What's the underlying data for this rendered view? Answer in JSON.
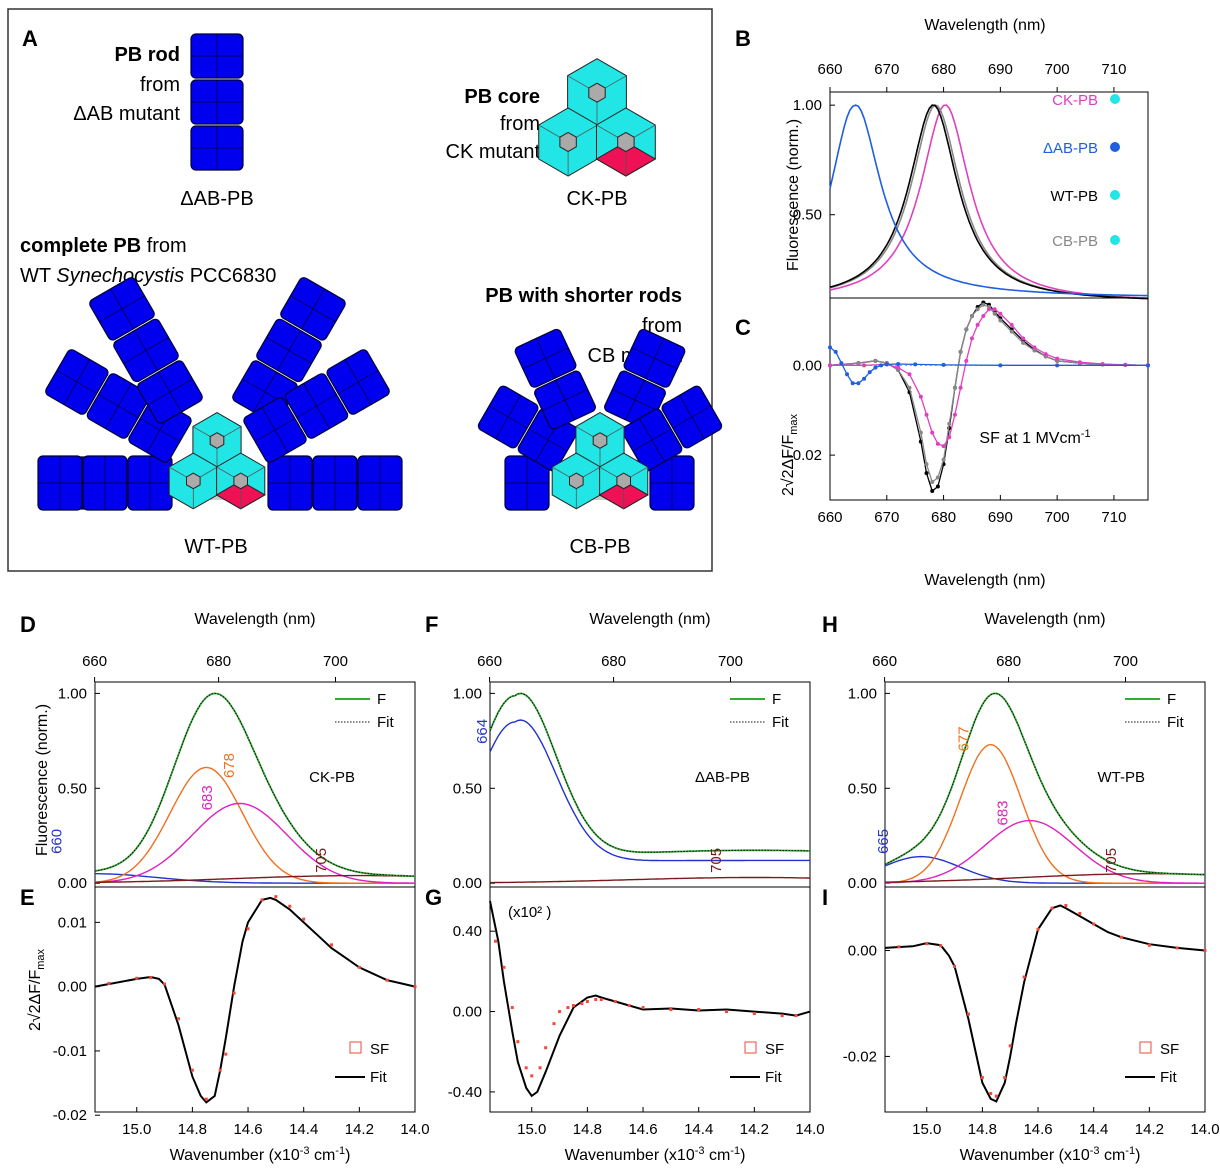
{
  "panel_labels": {
    "A": "A",
    "B": "B",
    "C": "C",
    "D": "D",
    "E": "E",
    "F": "F",
    "G": "G",
    "H": "H",
    "I": "I"
  },
  "schematic": {
    "rod_title_bold": "PB rod",
    "rod_from": "from",
    "rod_mutant": "ΔAB mutant",
    "rod_name": "ΔAB-PB",
    "core_title_bold": "PB core",
    "core_from": "from",
    "core_mutant": "CK mutant",
    "core_name": "CK-PB",
    "wt_title_bold": "complete PB",
    "wt_title_rest": " from",
    "wt_line2_a": "WT ",
    "wt_line2_italic": "Synechocystis",
    "wt_line2_b": " PCC6830",
    "wt_name": "WT-PB",
    "cb_title_bold": "PB with shorter rods",
    "cb_from": "from",
    "cb_mutant": "CB mutant",
    "cb_name": "CB-PB",
    "colors": {
      "rod": "#0000ee",
      "core": "#22e5e5",
      "core_red": "#ee1155",
      "gray": "#cccccc"
    }
  },
  "chart_data": [
    {
      "panel": "B",
      "type": "line",
      "top_xlabel": "Wavelength (nm)",
      "ylabel": "Fluorescence (norm.)",
      "xlim": [
        660,
        716
      ],
      "ylim": [
        0.12,
        1.06
      ],
      "xticks": [
        660,
        670,
        680,
        690,
        700,
        710
      ],
      "yticks": [
        "0.50",
        "1.00"
      ],
      "series": [
        {
          "name": "CK-PB",
          "color": "#e040c0",
          "peak": 680.3,
          "fwhm": 10.5,
          "base": 0.12
        },
        {
          "name": "ΔAB-PB",
          "color": "#1f5fdf",
          "peak": 664.3,
          "fwhm": 11,
          "base": 0.12
        },
        {
          "name": "WT-PB",
          "color": "#000000",
          "peak": 678.2,
          "fwhm": 10.5,
          "base": 0.12
        },
        {
          "name": "CB-PB",
          "color": "#888888",
          "peak": 678.6,
          "fwhm": 10.5,
          "base": 0.12
        }
      ]
    },
    {
      "panel": "C",
      "type": "line",
      "xlabel": "Wavelength (nm)",
      "ylabel": "2√2ΔF/Fmax",
      "annotation": "SF at 1 MVcm-1",
      "xlim": [
        660,
        716
      ],
      "ylim": [
        -0.03,
        0.015
      ],
      "xticks": [
        660,
        670,
        680,
        690,
        700,
        710
      ],
      "yticks": [
        "0.00",
        "-0.02"
      ],
      "series": [
        {
          "name": "WT-PB",
          "color": "#000000",
          "x": [
            660,
            665,
            668,
            670,
            672,
            674,
            676,
            677,
            678,
            679,
            680,
            681,
            682,
            683,
            684,
            685,
            686,
            687,
            688,
            689,
            690,
            692,
            694,
            696,
            698,
            700,
            704,
            708,
            712,
            716
          ],
          "y": [
            0.0,
            0.0005,
            0.001,
            0.0005,
            -0.001,
            -0.006,
            -0.017,
            -0.024,
            -0.028,
            -0.027,
            -0.022,
            -0.014,
            -0.005,
            0.003,
            0.008,
            0.011,
            0.013,
            0.014,
            0.0135,
            0.012,
            0.0105,
            0.008,
            0.0055,
            0.0035,
            0.002,
            0.001,
            0.0005,
            0.0002,
            0.0001,
            0.0
          ]
        },
        {
          "name": "CB-PB",
          "color": "#888888",
          "x": [
            660,
            665,
            668,
            670,
            672,
            674,
            676,
            677,
            678,
            679,
            680,
            681,
            682,
            683,
            684,
            685,
            686,
            687,
            688,
            689,
            690,
            692,
            694,
            696,
            698,
            700,
            704,
            708,
            712,
            716
          ],
          "y": [
            0.0,
            0.0005,
            0.001,
            0.0005,
            -0.001,
            -0.005,
            -0.015,
            -0.022,
            -0.026,
            -0.025,
            -0.021,
            -0.013,
            -0.005,
            0.003,
            0.008,
            0.011,
            0.0125,
            0.0135,
            0.013,
            0.0115,
            0.01,
            0.0075,
            0.005,
            0.0033,
            0.002,
            0.001,
            0.0005,
            0.0002,
            0.0001,
            0.0
          ]
        },
        {
          "name": "CK-PB",
          "color": "#e040c0",
          "x": [
            660,
            666,
            670,
            672,
            674,
            676,
            677,
            678,
            679,
            680,
            681,
            682,
            683,
            684,
            685,
            686,
            687,
            688,
            689,
            690,
            692,
            694,
            696,
            698,
            700,
            704,
            708,
            712,
            716
          ],
          "y": [
            0.0,
            0.0,
            0.0002,
            -0.0005,
            -0.002,
            -0.007,
            -0.011,
            -0.015,
            -0.0175,
            -0.018,
            -0.016,
            -0.011,
            -0.005,
            0.001,
            0.006,
            0.009,
            0.011,
            0.0125,
            0.0125,
            0.0115,
            0.009,
            0.006,
            0.004,
            0.0025,
            0.0015,
            0.0007,
            0.0003,
            0.0001,
            0.0
          ]
        },
        {
          "name": "ΔAB-PB",
          "color": "#1f5fdf",
          "x": [
            660,
            661,
            662,
            663,
            664,
            665,
            666,
            667,
            668,
            669,
            670,
            672,
            675,
            680,
            690,
            700,
            716
          ],
          "y": [
            0.004,
            0.003,
            0.0005,
            -0.002,
            -0.004,
            -0.004,
            -0.003,
            -0.0015,
            -0.0005,
            0.0,
            0.0002,
            0.0003,
            0.0002,
            0.0001,
            0.0,
            0.0,
            0.0
          ]
        }
      ]
    },
    {
      "panel": "D",
      "type": "line",
      "top_xlabel": "Wavelength (nm)",
      "ylabel": "Fluorescence (norm.)",
      "sample_label": "CK-PB",
      "xlim": [
        15.15,
        14.0
      ],
      "ylim": [
        -0.02,
        1.06
      ],
      "top_ticks": [
        660,
        680,
        700
      ],
      "yticks": [
        "0.00",
        "0.50",
        "1.00"
      ],
      "legend": [
        "F",
        "Fit"
      ],
      "peak_labels": [
        {
          "text": "660",
          "color": "#2233cc"
        },
        {
          "text": "678",
          "color": "#f07020"
        },
        {
          "text": "683",
          "color": "#e020c0"
        },
        {
          "text": "705",
          "color": "#7a1a1a"
        }
      ],
      "components": [
        {
          "name": "660",
          "color": "#2233cc",
          "center": 15.15,
          "width": 0.22,
          "amp": 0.05
        },
        {
          "name": "678",
          "color": "#f07020",
          "center": 14.75,
          "width": 0.13,
          "amp": 0.61
        },
        {
          "name": "683",
          "color": "#e020c0",
          "center": 14.63,
          "width": 0.17,
          "amp": 0.42
        },
        {
          "name": "705",
          "color": "#7a1a1a",
          "center": 14.2,
          "width": 0.45,
          "amp": 0.04
        }
      ],
      "total": {
        "name": "F",
        "color": "#33aa33"
      }
    },
    {
      "panel": "E",
      "type": "line",
      "xlabel": "Wavenumber (x10-3 cm-1)",
      "ylabel": "2√2ΔF/Fmax",
      "xlim": [
        15.15,
        14.0
      ],
      "ylim": [
        -0.0195,
        0.0155
      ],
      "xticks": [
        "15.0",
        "14.8",
        "14.6",
        "14.4",
        "14.2",
        "14.0"
      ],
      "yticks": [
        "-0.02",
        "-0.01",
        "0.00",
        "0.01"
      ],
      "legend": [
        "SF",
        "Fit"
      ],
      "fit_x": [
        15.15,
        15.0,
        14.95,
        14.92,
        14.9,
        14.85,
        14.8,
        14.77,
        14.75,
        14.72,
        14.7,
        14.68,
        14.65,
        14.62,
        14.6,
        14.55,
        14.52,
        14.5,
        14.45,
        14.4,
        14.35,
        14.3,
        14.25,
        14.2,
        14.15,
        14.1,
        14.05,
        14.0
      ],
      "fit_y": [
        0.0,
        0.0012,
        0.0015,
        0.0012,
        0.0003,
        -0.006,
        -0.014,
        -0.017,
        -0.018,
        -0.017,
        -0.013,
        -0.008,
        0.0,
        0.007,
        0.01,
        0.0135,
        0.0138,
        0.0135,
        0.012,
        0.01,
        0.008,
        0.006,
        0.0045,
        0.003,
        0.002,
        0.001,
        0.0005,
        0.0
      ],
      "sf_x": [
        15.1,
        15.0,
        14.95,
        14.9,
        14.85,
        14.8,
        14.75,
        14.7,
        14.68,
        14.65,
        14.6,
        14.55,
        14.5,
        14.45,
        14.4,
        14.3,
        14.2,
        14.1,
        14.0
      ],
      "sf_y": [
        0.0005,
        0.0013,
        0.0014,
        0.0004,
        -0.005,
        -0.013,
        -0.0175,
        -0.013,
        -0.0105,
        -0.001,
        0.009,
        0.0135,
        0.014,
        0.0125,
        0.0105,
        0.0065,
        0.003,
        0.001,
        0.0
      ]
    },
    {
      "panel": "F",
      "type": "line",
      "top_xlabel": "Wavelength (nm)",
      "sample_label": "ΔAB-PB",
      "xlim": [
        15.15,
        14.0
      ],
      "ylim": [
        -0.02,
        1.06
      ],
      "top_ticks": [
        660,
        680,
        700
      ],
      "yticks": [
        "0.00",
        "0.50",
        "1.00"
      ],
      "legend": [
        "F",
        "Fit"
      ],
      "peak_labels": [
        {
          "text": "664",
          "color": "#2233cc"
        },
        {
          "text": "705",
          "color": "#7a1a1a"
        }
      ],
      "components": [
        {
          "name": "664",
          "color": "#2233cc",
          "center": 15.06,
          "width": 0.14,
          "amp": 0.85
        },
        {
          "name": "705",
          "color": "#7a1a1a",
          "center": 14.2,
          "width": 0.45,
          "amp": 0.03
        }
      ],
      "tail": {
        "color": "#2233cc",
        "level": 0.12
      },
      "total": {
        "name": "F",
        "color": "#33aa33"
      }
    },
    {
      "panel": "G",
      "type": "line",
      "ylabel_note": "(x10² )",
      "xlabel": "Wavenumber (x10-3 cm-1)",
      "xlim": [
        15.15,
        14.0
      ],
      "ylim": [
        -0.5,
        0.62
      ],
      "xticks": [
        "15.0",
        "14.8",
        "14.6",
        "14.4",
        "14.2",
        "14.0"
      ],
      "yticks": [
        "0.40",
        "0.00",
        "-0.40"
      ],
      "legend": [
        "SF",
        "Fit"
      ],
      "fit_x": [
        15.15,
        15.12,
        15.1,
        15.07,
        15.05,
        15.02,
        15.0,
        14.98,
        14.95,
        14.9,
        14.85,
        14.8,
        14.77,
        14.75,
        14.7,
        14.65,
        14.6,
        14.5,
        14.4,
        14.3,
        14.2,
        14.1,
        14.05,
        14.0
      ],
      "fit_y": [
        0.55,
        0.35,
        0.15,
        -0.1,
        -0.25,
        -0.38,
        -0.42,
        -0.4,
        -0.3,
        -0.12,
        0.02,
        0.07,
        0.08,
        0.07,
        0.05,
        0.03,
        0.01,
        0.015,
        0.005,
        0.01,
        0.0,
        -0.01,
        -0.02,
        0.0
      ],
      "sf_x": [
        15.13,
        15.1,
        15.07,
        15.05,
        15.02,
        15.0,
        14.97,
        14.95,
        14.92,
        14.9,
        14.87,
        14.85,
        14.82,
        14.8,
        14.77,
        14.75,
        14.7,
        14.65,
        14.6,
        14.5,
        14.4,
        14.3,
        14.2,
        14.1,
        14.05
      ],
      "sf_y": [
        0.35,
        0.22,
        0.02,
        -0.15,
        -0.28,
        -0.32,
        -0.28,
        -0.18,
        -0.06,
        0.0,
        0.02,
        0.03,
        0.04,
        0.05,
        0.06,
        0.06,
        0.05,
        0.03,
        0.02,
        0.01,
        0.01,
        0.0,
        -0.01,
        -0.02,
        -0.02
      ]
    },
    {
      "panel": "H",
      "type": "line",
      "top_xlabel": "Wavelength (nm)",
      "sample_label": "WT-PB",
      "xlim": [
        15.15,
        14.0
      ],
      "ylim": [
        -0.02,
        1.06
      ],
      "top_ticks": [
        660,
        680,
        700
      ],
      "yticks": [
        "0.00",
        "0.50",
        "1.00"
      ],
      "legend": [
        "F",
        "Fit"
      ],
      "peak_labels": [
        {
          "text": "665",
          "color": "#2233cc"
        },
        {
          "text": "677",
          "color": "#f07020"
        },
        {
          "text": "683",
          "color": "#e020c0"
        },
        {
          "text": "705",
          "color": "#7a1a1a"
        }
      ],
      "components": [
        {
          "name": "665",
          "color": "#2233cc",
          "center": 15.02,
          "width": 0.14,
          "amp": 0.14
        },
        {
          "name": "677",
          "color": "#f07020",
          "center": 14.77,
          "width": 0.11,
          "amp": 0.73
        },
        {
          "name": "683",
          "color": "#e020c0",
          "center": 14.63,
          "width": 0.16,
          "amp": 0.33
        },
        {
          "name": "705",
          "color": "#7a1a1a",
          "center": 14.2,
          "width": 0.45,
          "amp": 0.05
        }
      ],
      "total": {
        "name": "F",
        "color": "#33aa33"
      }
    },
    {
      "panel": "I",
      "type": "line",
      "xlabel": "Wavenumber (x10-3 cm-1)",
      "xlim": [
        15.15,
        14.0
      ],
      "ylim": [
        -0.0305,
        0.012
      ],
      "xticks": [
        "15.0",
        "14.8",
        "14.6",
        "14.4",
        "14.2",
        "14.0"
      ],
      "yticks": [
        "0.00",
        "-0.02"
      ],
      "legend": [
        "SF",
        "Fit"
      ],
      "fit_x": [
        15.15,
        15.05,
        15.0,
        14.95,
        14.92,
        14.9,
        14.85,
        14.8,
        14.77,
        14.75,
        14.72,
        14.7,
        14.68,
        14.65,
        14.6,
        14.55,
        14.52,
        14.5,
        14.45,
        14.4,
        14.35,
        14.3,
        14.2,
        14.1,
        14.0
      ],
      "fit_y": [
        0.0005,
        0.0008,
        0.0014,
        0.001,
        -0.001,
        -0.003,
        -0.013,
        -0.025,
        -0.028,
        -0.0285,
        -0.025,
        -0.02,
        -0.014,
        -0.006,
        0.004,
        0.008,
        0.0085,
        0.008,
        0.0065,
        0.005,
        0.0035,
        0.0025,
        0.0012,
        0.0005,
        0.0
      ],
      "sf_x": [
        15.1,
        15.0,
        14.95,
        14.9,
        14.85,
        14.8,
        14.77,
        14.75,
        14.72,
        14.7,
        14.65,
        14.6,
        14.55,
        14.5,
        14.45,
        14.4,
        14.3,
        14.2,
        14.1,
        14.0
      ],
      "sf_y": [
        0.0007,
        0.0013,
        0.0009,
        -0.003,
        -0.012,
        -0.024,
        -0.027,
        -0.0275,
        -0.024,
        -0.018,
        -0.005,
        0.004,
        0.008,
        0.0085,
        0.007,
        0.005,
        0.0025,
        0.001,
        0.0005,
        0.0
      ]
    }
  ]
}
